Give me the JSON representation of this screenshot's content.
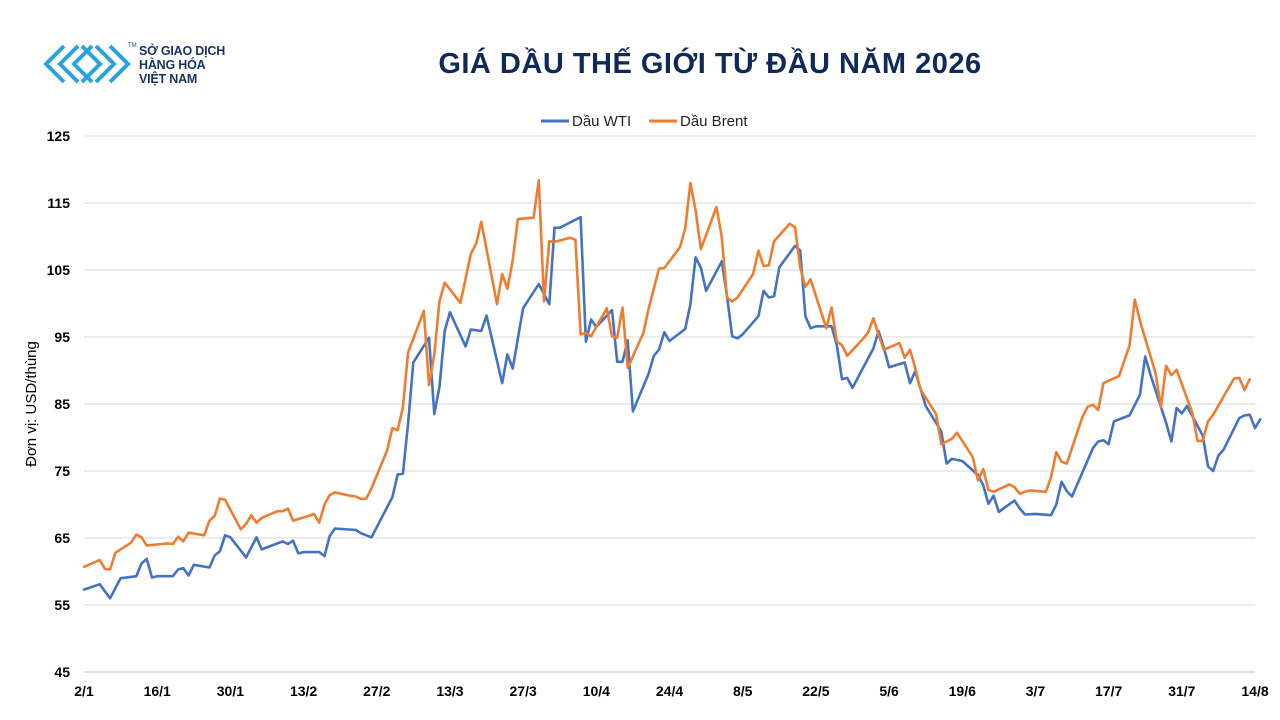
{
  "brand": {
    "lines": [
      "SỞ GIAO DỊCH",
      "HÀNG HÓA",
      "VIỆT NAM"
    ],
    "tm": "TM",
    "colors": {
      "logo": "#2aa3dc"
    }
  },
  "chart_data": {
    "type": "line",
    "title": "GIÁ DẦU THẾ GIỚI TỪ ĐẦU NĂM 2026",
    "ylabel": "Đơn vị: USD/thùng",
    "xlabel": "",
    "ylim": [
      45,
      125
    ],
    "yticks": [
      45,
      55,
      65,
      75,
      85,
      95,
      105,
      115,
      125
    ],
    "x_range_days": [
      0,
      224
    ],
    "x_ticks": [
      {
        "label": "2/1",
        "day": 0
      },
      {
        "label": "16/1",
        "day": 14
      },
      {
        "label": "30/1",
        "day": 28
      },
      {
        "label": "13/2",
        "day": 42
      },
      {
        "label": "27/2",
        "day": 56
      },
      {
        "label": "13/3",
        "day": 70
      },
      {
        "label": "27/3",
        "day": 84
      },
      {
        "label": "10/4",
        "day": 98
      },
      {
        "label": "24/4",
        "day": 112
      },
      {
        "label": "8/5",
        "day": 126
      },
      {
        "label": "22/5",
        "day": 140
      },
      {
        "label": "5/6",
        "day": 154
      },
      {
        "label": "19/6",
        "day": 168
      },
      {
        "label": "3/7",
        "day": 182
      },
      {
        "label": "17/7",
        "day": 196
      },
      {
        "label": "31/7",
        "day": 210
      },
      {
        "label": "14/8",
        "day": 224
      }
    ],
    "legend": {
      "position": "top-center"
    },
    "grid": {
      "horizontal": true,
      "vertical": false
    },
    "series": [
      {
        "name": "Dầu WTI",
        "color": "#4472c4",
        "points": [
          [
            0,
            57.3
          ],
          [
            3,
            58.1
          ],
          [
            5,
            56.0
          ],
          [
            7,
            59.0
          ],
          [
            10,
            59.3
          ],
          [
            11,
            61.2
          ],
          [
            12,
            61.9
          ],
          [
            13,
            59.1
          ],
          [
            14,
            59.3
          ],
          [
            17,
            59.3
          ],
          [
            18,
            60.3
          ],
          [
            19,
            60.5
          ],
          [
            20,
            59.4
          ],
          [
            21,
            61.0
          ],
          [
            24,
            60.6
          ],
          [
            25,
            62.4
          ],
          [
            26,
            63.0
          ],
          [
            27,
            65.4
          ],
          [
            28,
            65.1
          ],
          [
            31,
            62.1
          ],
          [
            33,
            65.1
          ],
          [
            34,
            63.3
          ],
          [
            38,
            64.5
          ],
          [
            39,
            64.1
          ],
          [
            40,
            64.6
          ],
          [
            41,
            62.7
          ],
          [
            42,
            62.9
          ],
          [
            45,
            62.9
          ],
          [
            46,
            62.3
          ],
          [
            47,
            65.3
          ],
          [
            48,
            66.4
          ],
          [
            52,
            66.2
          ],
          [
            53,
            65.7
          ],
          [
            55,
            65.1
          ],
          [
            59,
            71.1
          ],
          [
            60,
            74.5
          ],
          [
            61,
            74.6
          ],
          [
            62,
            82.1
          ],
          [
            63,
            91.2
          ],
          [
            66,
            94.9
          ],
          [
            67,
            83.5
          ],
          [
            68,
            87.6
          ],
          [
            69,
            95.9
          ],
          [
            70,
            98.7
          ],
          [
            73,
            93.6
          ],
          [
            74,
            96.1
          ],
          [
            76,
            95.9
          ],
          [
            77,
            98.2
          ],
          [
            80,
            88.1
          ],
          [
            81,
            92.4
          ],
          [
            82,
            90.3
          ],
          [
            84,
            99.3
          ],
          [
            87,
            102.9
          ],
          [
            89,
            99.9
          ],
          [
            90,
            111.3
          ],
          [
            91,
            111.3
          ],
          [
            95,
            112.9
          ],
          [
            96,
            94.3
          ],
          [
            97,
            97.6
          ],
          [
            98,
            96.5
          ],
          [
            101,
            99.0
          ],
          [
            102,
            91.3
          ],
          [
            103,
            91.3
          ],
          [
            104,
            94.5
          ],
          [
            105,
            83.9
          ],
          [
            108,
            89.5
          ],
          [
            109,
            92.2
          ],
          [
            110,
            93.1
          ],
          [
            111,
            95.7
          ],
          [
            112,
            94.4
          ],
          [
            115,
            96.2
          ],
          [
            116,
            99.9
          ],
          [
            117,
            106.9
          ],
          [
            118,
            105.3
          ],
          [
            119,
            101.9
          ],
          [
            122,
            106.3
          ],
          [
            123,
            101.1
          ],
          [
            124,
            95.1
          ],
          [
            125,
            94.8
          ],
          [
            126,
            95.4
          ],
          [
            129,
            98.1
          ],
          [
            130,
            101.9
          ],
          [
            131,
            100.9
          ],
          [
            132,
            101.1
          ],
          [
            133,
            105.4
          ],
          [
            136,
            108.6
          ],
          [
            137,
            107.9
          ],
          [
            138,
            98.1
          ],
          [
            139,
            96.3
          ],
          [
            140,
            96.6
          ],
          [
            143,
            96.6
          ],
          [
            144,
            93.8
          ],
          [
            145,
            88.7
          ],
          [
            146,
            88.9
          ],
          [
            147,
            87.4
          ],
          [
            151,
            93.3
          ],
          [
            152,
            95.9
          ],
          [
            153,
            93.4
          ],
          [
            154,
            90.5
          ],
          [
            157,
            91.2
          ],
          [
            158,
            88.1
          ],
          [
            159,
            89.9
          ],
          [
            161,
            84.7
          ],
          [
            164,
            80.9
          ],
          [
            165,
            76.1
          ],
          [
            166,
            76.8
          ],
          [
            168,
            76.5
          ],
          [
            171,
            74.4
          ],
          [
            172,
            72.9
          ],
          [
            173,
            70.1
          ],
          [
            174,
            71.3
          ],
          [
            175,
            68.9
          ],
          [
            178,
            70.6
          ],
          [
            179,
            69.4
          ],
          [
            180,
            68.5
          ],
          [
            182,
            68.6
          ],
          [
            185,
            68.4
          ],
          [
            186,
            70.0
          ],
          [
            187,
            73.4
          ],
          [
            188,
            72.0
          ],
          [
            189,
            71.2
          ],
          [
            193,
            78.4
          ],
          [
            194,
            79.4
          ],
          [
            195,
            79.6
          ],
          [
            196,
            79.0
          ],
          [
            197,
            82.4
          ],
          [
            200,
            83.3
          ],
          [
            202,
            86.4
          ],
          [
            203,
            92.1
          ],
          [
            204,
            89.4
          ],
          [
            207,
            82.2
          ],
          [
            208,
            79.4
          ],
          [
            209,
            84.4
          ],
          [
            210,
            83.6
          ],
          [
            211,
            84.7
          ],
          [
            214,
            80.3
          ],
          [
            215,
            75.7
          ],
          [
            216,
            75.0
          ],
          [
            217,
            77.3
          ],
          [
            218,
            78.2
          ],
          [
            221,
            82.9
          ],
          [
            222,
            83.3
          ],
          [
            223,
            83.4
          ],
          [
            224,
            81.4
          ],
          [
            225,
            82.7
          ]
        ]
      },
      {
        "name": "Dầu Brent",
        "color": "#ed7d31",
        "points": [
          [
            0,
            60.7
          ],
          [
            3,
            61.7
          ],
          [
            4,
            60.4
          ],
          [
            5,
            60.3
          ],
          [
            6,
            62.8
          ],
          [
            9,
            64.3
          ],
          [
            10,
            65.5
          ],
          [
            11,
            65.1
          ],
          [
            12,
            63.9
          ],
          [
            15,
            64.1
          ],
          [
            16,
            64.2
          ],
          [
            17,
            64.1
          ],
          [
            18,
            65.2
          ],
          [
            19,
            64.5
          ],
          [
            20,
            65.8
          ],
          [
            23,
            65.4
          ],
          [
            24,
            67.6
          ],
          [
            25,
            68.3
          ],
          [
            26,
            70.9
          ],
          [
            27,
            70.7
          ],
          [
            30,
            66.3
          ],
          [
            31,
            67.1
          ],
          [
            32,
            68.4
          ],
          [
            33,
            67.3
          ],
          [
            34,
            68.0
          ],
          [
            37,
            69.0
          ],
          [
            38,
            69.0
          ],
          [
            39,
            69.4
          ],
          [
            40,
            67.6
          ],
          [
            43,
            68.3
          ],
          [
            44,
            68.6
          ],
          [
            45,
            67.3
          ],
          [
            46,
            70.0
          ],
          [
            47,
            71.4
          ],
          [
            48,
            71.8
          ],
          [
            51,
            71.3
          ],
          [
            52,
            71.2
          ],
          [
            53,
            70.8
          ],
          [
            54,
            70.9
          ],
          [
            55,
            72.4
          ],
          [
            58,
            78.1
          ],
          [
            59,
            81.4
          ],
          [
            60,
            81.1
          ],
          [
            61,
            84.5
          ],
          [
            62,
            92.7
          ],
          [
            65,
            98.9
          ],
          [
            66,
            87.8
          ],
          [
            67,
            92.4
          ],
          [
            68,
            100.4
          ],
          [
            69,
            103.1
          ],
          [
            72,
            100.1
          ],
          [
            73,
            103.7
          ],
          [
            74,
            107.4
          ],
          [
            75,
            108.9
          ],
          [
            76,
            112.2
          ],
          [
            79,
            99.9
          ],
          [
            80,
            104.4
          ],
          [
            81,
            102.2
          ],
          [
            82,
            106.4
          ],
          [
            83,
            112.6
          ],
          [
            86,
            112.8
          ],
          [
            87,
            118.4
          ],
          [
            88,
            100.3
          ],
          [
            89,
            109.3
          ],
          [
            90,
            109.2
          ],
          [
            93,
            109.8
          ],
          [
            94,
            109.5
          ],
          [
            95,
            95.4
          ],
          [
            96,
            95.6
          ],
          [
            97,
            95.1
          ],
          [
            100,
            99.3
          ],
          [
            101,
            95.1
          ],
          [
            102,
            94.9
          ],
          [
            103,
            99.4
          ],
          [
            104,
            90.4
          ],
          [
            107,
            95.6
          ],
          [
            108,
            99.2
          ],
          [
            109,
            102.2
          ],
          [
            110,
            105.2
          ],
          [
            111,
            105.3
          ],
          [
            114,
            108.4
          ],
          [
            115,
            111.2
          ],
          [
            116,
            118.0
          ],
          [
            117,
            113.9
          ],
          [
            118,
            108.1
          ],
          [
            121,
            114.4
          ],
          [
            122,
            109.9
          ],
          [
            123,
            100.9
          ],
          [
            124,
            100.3
          ],
          [
            125,
            100.9
          ],
          [
            128,
            104.4
          ],
          [
            129,
            107.9
          ],
          [
            130,
            105.6
          ],
          [
            131,
            105.7
          ],
          [
            132,
            109.3
          ],
          [
            135,
            111.9
          ],
          [
            136,
            111.4
          ],
          [
            137,
            105.4
          ],
          [
            138,
            102.5
          ],
          [
            139,
            103.6
          ],
          [
            142,
            96.3
          ],
          [
            143,
            99.4
          ],
          [
            144,
            94.3
          ],
          [
            145,
            93.8
          ],
          [
            146,
            92.2
          ],
          [
            149,
            94.7
          ],
          [
            150,
            95.7
          ],
          [
            151,
            97.8
          ],
          [
            152,
            95.3
          ],
          [
            153,
            93.1
          ],
          [
            156,
            94.1
          ],
          [
            157,
            91.9
          ],
          [
            158,
            93.1
          ],
          [
            159,
            90.4
          ],
          [
            160,
            87.2
          ],
          [
            163,
            83.5
          ],
          [
            164,
            79.0
          ],
          [
            165,
            79.4
          ],
          [
            166,
            79.8
          ],
          [
            167,
            80.7
          ],
          [
            170,
            77.1
          ],
          [
            171,
            73.6
          ],
          [
            172,
            75.3
          ],
          [
            173,
            72.2
          ],
          [
            174,
            71.9
          ],
          [
            177,
            73.0
          ],
          [
            178,
            72.6
          ],
          [
            179,
            71.6
          ],
          [
            180,
            71.9
          ],
          [
            181,
            72.1
          ],
          [
            184,
            71.9
          ],
          [
            185,
            74.1
          ],
          [
            186,
            77.8
          ],
          [
            187,
            76.4
          ],
          [
            188,
            76.1
          ],
          [
            191,
            83.1
          ],
          [
            192,
            84.6
          ],
          [
            193,
            84.9
          ],
          [
            194,
            84.1
          ],
          [
            195,
            88.1
          ],
          [
            198,
            89.2
          ],
          [
            200,
            93.7
          ],
          [
            201,
            100.6
          ],
          [
            202,
            97.4
          ],
          [
            205,
            89.5
          ],
          [
            206,
            84.5
          ],
          [
            207,
            90.7
          ],
          [
            208,
            89.3
          ],
          [
            209,
            90.1
          ],
          [
            212,
            83.7
          ],
          [
            213,
            79.5
          ],
          [
            214,
            79.5
          ],
          [
            215,
            82.4
          ],
          [
            216,
            83.4
          ],
          [
            219,
            87.5
          ],
          [
            220,
            88.8
          ],
          [
            221,
            88.9
          ],
          [
            222,
            87.1
          ],
          [
            223,
            88.7
          ]
        ]
      }
    ]
  }
}
